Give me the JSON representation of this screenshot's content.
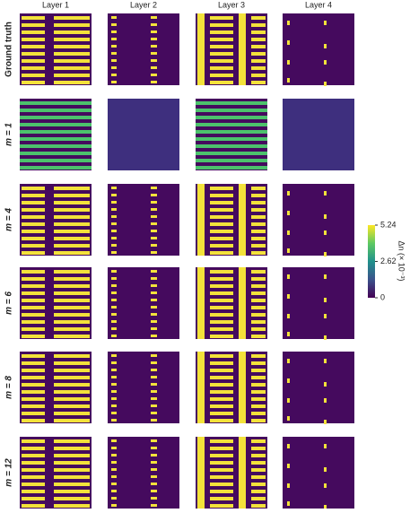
{
  "columns": [
    "Layer 1",
    "Layer 2",
    "Layer 3",
    "Layer 4"
  ],
  "rows": [
    "Ground truth",
    "m = 1",
    "m = 4",
    "m = 6",
    "m = 8",
    "m = 12"
  ],
  "colorbar": {
    "label": "Δn (× 10⁻³)",
    "lim": [
      0,
      5.24
    ],
    "ticks": [
      0,
      2.62,
      5.24
    ]
  }
}
